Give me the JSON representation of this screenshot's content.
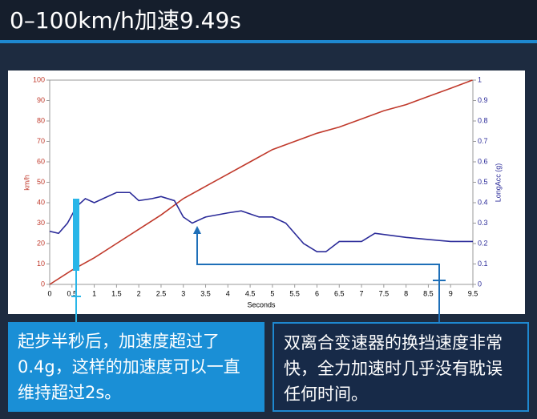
{
  "chart_data": {
    "type": "line",
    "title": "0–100km/h加速9.49s",
    "xlabel": "Seconds",
    "ylabel": "km/h",
    "y2label": "LongAcc (g)",
    "xlim": [
      0,
      9.5
    ],
    "ylim": [
      0,
      100
    ],
    "y2lim": [
      0,
      1
    ],
    "xticks": [
      0,
      0.5,
      1,
      1.5,
      2,
      2.5,
      3,
      3.5,
      4,
      4.5,
      5,
      5.5,
      6,
      6.5,
      7,
      7.5,
      8,
      8.5,
      9,
      9.5
    ],
    "yticks": [
      0,
      10,
      20,
      30,
      40,
      50,
      60,
      70,
      80,
      90,
      100
    ],
    "y2ticks": [
      0,
      0.1,
      0.2,
      0.3,
      0.4,
      0.5,
      0.6,
      0.7,
      0.8,
      0.9,
      1
    ],
    "series": [
      {
        "name": "km/h",
        "color": "#c0392b",
        "axis": "y",
        "x": [
          0,
          0.5,
          1,
          1.5,
          2,
          2.5,
          3,
          3.5,
          4,
          4.5,
          5,
          5.5,
          6,
          6.5,
          7,
          7.5,
          8,
          8.5,
          9,
          9.49
        ],
        "values": [
          0,
          7,
          13,
          20,
          27,
          34,
          42,
          48,
          54,
          60,
          66,
          70,
          74,
          77,
          81,
          85,
          88,
          92,
          96,
          100
        ]
      },
      {
        "name": "LongAcc (g)",
        "color": "#2b2b99",
        "axis": "y2",
        "x": [
          0,
          0.2,
          0.4,
          0.6,
          0.8,
          1,
          1.2,
          1.5,
          1.8,
          2,
          2.3,
          2.5,
          2.8,
          3,
          3.2,
          3.5,
          4,
          4.3,
          4.7,
          5,
          5.3,
          5.5,
          5.7,
          6,
          6.2,
          6.5,
          7,
          7.3,
          8,
          8.5,
          9,
          9.5
        ],
        "values": [
          0.26,
          0.25,
          0.3,
          0.38,
          0.42,
          0.4,
          0.42,
          0.45,
          0.45,
          0.41,
          0.42,
          0.43,
          0.41,
          0.33,
          0.3,
          0.33,
          0.35,
          0.36,
          0.33,
          0.33,
          0.3,
          0.25,
          0.2,
          0.16,
          0.16,
          0.21,
          0.21,
          0.25,
          0.23,
          0.22,
          0.21,
          0.21
        ]
      }
    ],
    "annotations": [
      "起步半秒后，加速度超过了0.4g，这样的加速度可以一直维持超过2s。",
      "双离合变速器的换挡速度非常快，全力加速时几乎没有耽误任何时间。"
    ]
  }
}
